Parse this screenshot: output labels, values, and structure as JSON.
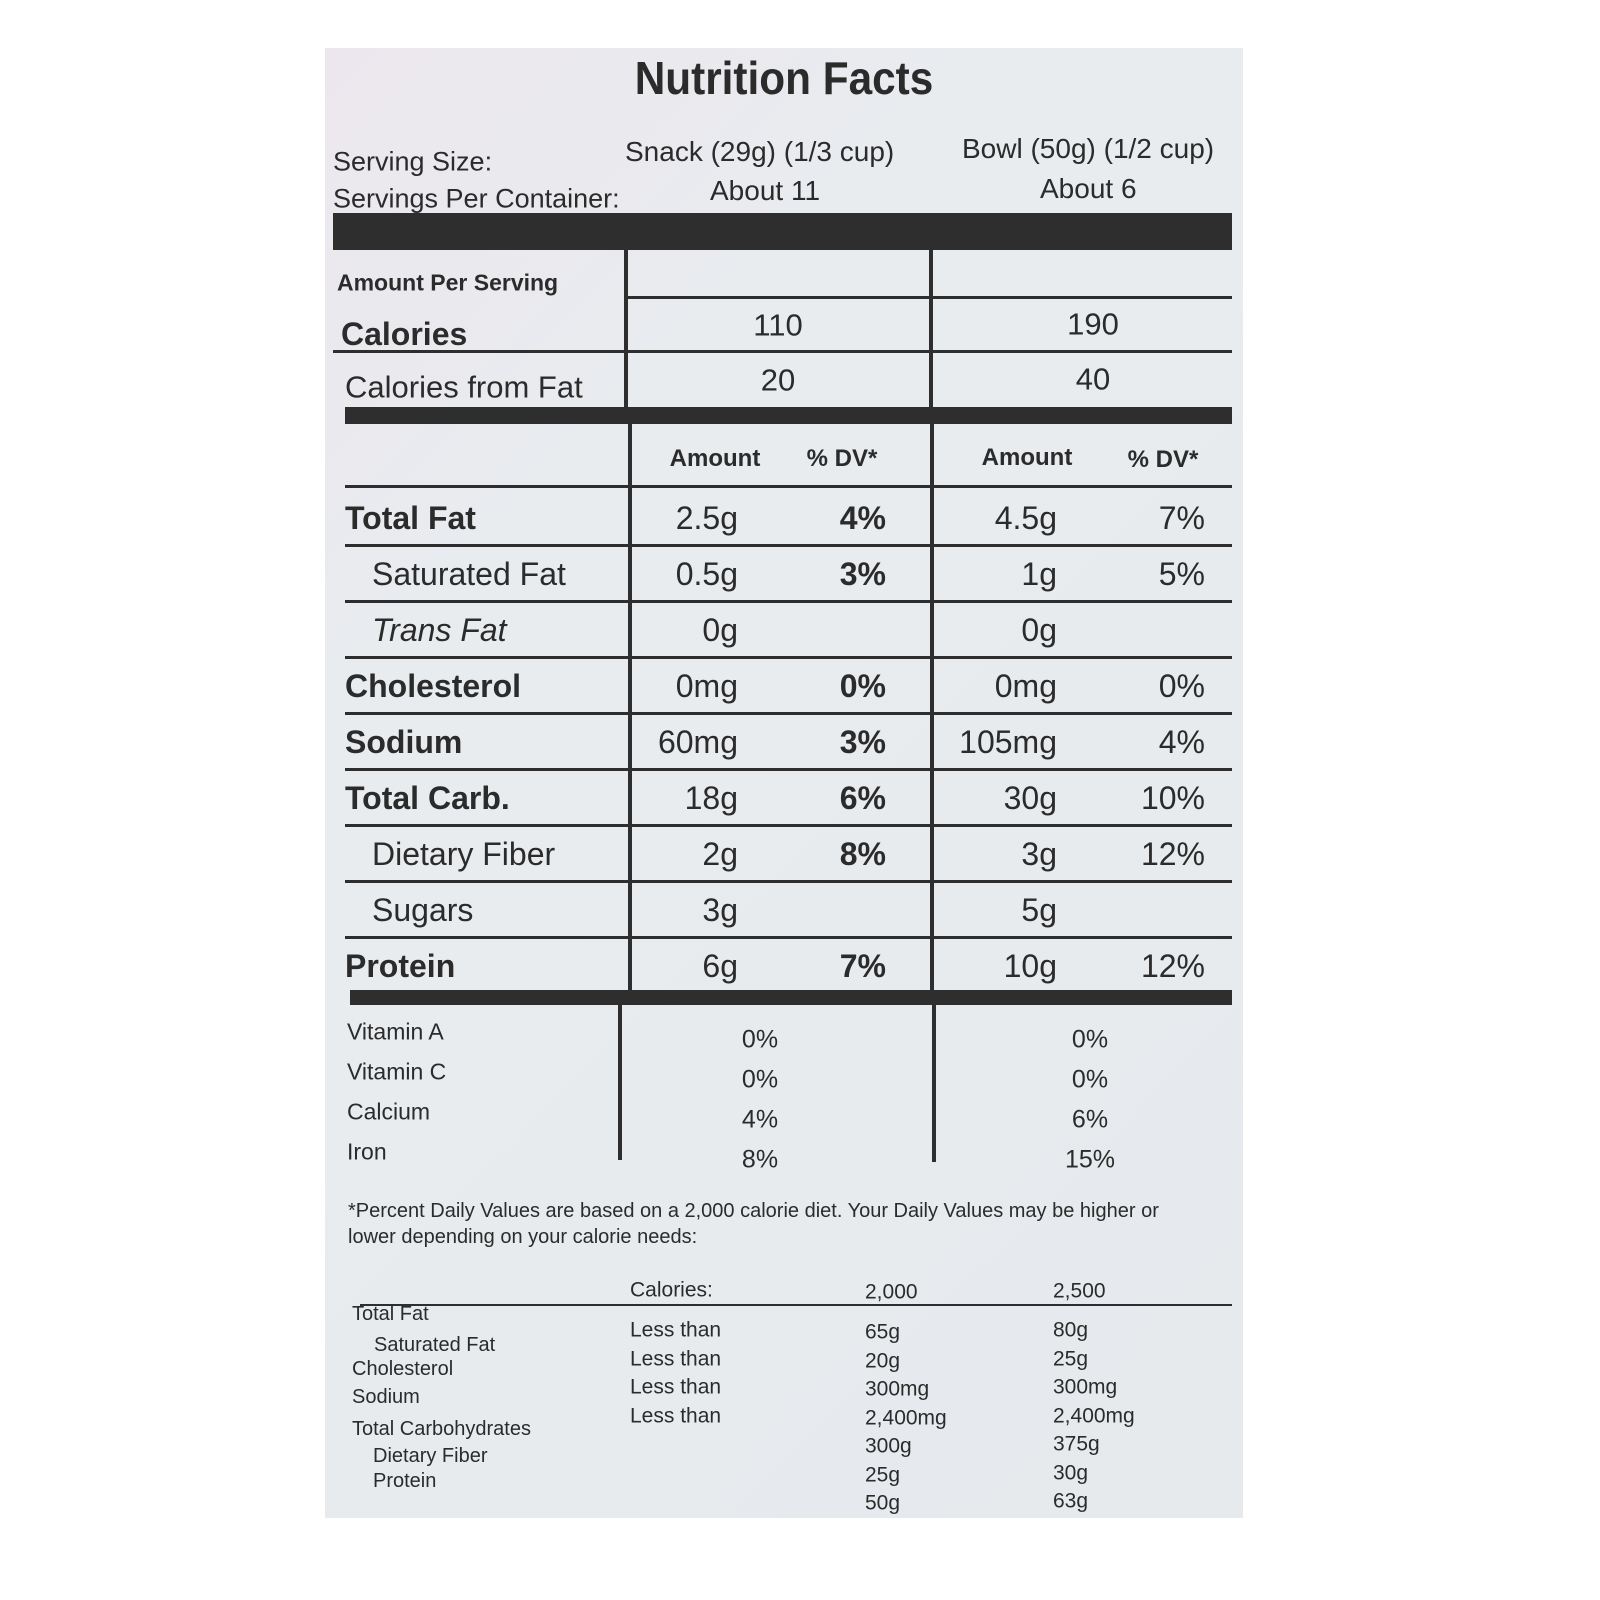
{
  "title": "Nutrition Facts",
  "serving_size": {
    "label": "Serving Size:",
    "snack": "Snack (29g) (1/3 cup)",
    "bowl": "Bowl (50g) (1/2 cup)"
  },
  "servings_per_container": {
    "label": "Servings Per Container:",
    "snack": "About 11",
    "bowl": "About 6"
  },
  "amount_per_serving": "Amount Per Serving",
  "calories": {
    "label": "Calories",
    "snack": "110",
    "bowl": "190"
  },
  "calories_from_fat": {
    "label": "Calories from Fat",
    "snack": "20",
    "bowl": "40"
  },
  "columns": {
    "amount": "Amount",
    "dv": "% DV*"
  },
  "nutrients": [
    {
      "name": "Total Fat",
      "snack_amount": "2.5g",
      "snack_dv": "4%",
      "bowl_amount": "4.5g",
      "bowl_dv": "7%"
    },
    {
      "name": "Saturated Fat",
      "snack_amount": "0.5g",
      "snack_dv": "3%",
      "bowl_amount": "1g",
      "bowl_dv": "5%"
    },
    {
      "name": "Trans Fat",
      "snack_amount": "0g",
      "bowl_amount": "0g"
    },
    {
      "name": "Cholesterol",
      "snack_amount": "0mg",
      "snack_dv": "0%",
      "bowl_amount": "0mg",
      "bowl_dv": "0%"
    },
    {
      "name": "Sodium",
      "snack_amount": "60mg",
      "snack_dv": "3%",
      "bowl_amount": "105mg",
      "bowl_dv": "4%"
    },
    {
      "name": "Total Carb.",
      "snack_amount": "18g",
      "snack_dv": "6%",
      "bowl_amount": "30g",
      "bowl_dv": "10%"
    },
    {
      "name": "Dietary Fiber",
      "snack_amount": "2g",
      "snack_dv": "8%",
      "bowl_amount": "3g",
      "bowl_dv": "12%"
    },
    {
      "name": "Sugars",
      "snack_amount": "3g",
      "bowl_amount": "5g"
    },
    {
      "name": "Protein",
      "snack_amount": "6g",
      "snack_dv": "7%",
      "bowl_amount": "10g",
      "bowl_dv": "12%"
    }
  ],
  "vitamins": [
    {
      "name": "Vitamin A",
      "snack": "0%",
      "bowl": "0%"
    },
    {
      "name": "Vitamin C",
      "snack": "0%",
      "bowl": "0%"
    },
    {
      "name": "Calcium",
      "snack": "4%",
      "bowl": "6%"
    },
    {
      "name": "Iron",
      "snack": "8%",
      "bowl": "15%"
    }
  ],
  "footnote": "*Percent Daily Values are based on a 2,000 calorie diet. Your Daily Values may be higher or lower depending on your calorie needs:",
  "daily_values": {
    "header": {
      "calories": "Calories:",
      "c2000": "2,000",
      "c2500": "2,500"
    },
    "rows": [
      {
        "name": "Total Fat",
        "qualifier": "Less than",
        "c2000": "65g",
        "c2500": "80g"
      },
      {
        "name": "Saturated Fat",
        "qualifier": "Less than",
        "c2000": "20g",
        "c2500": "25g"
      },
      {
        "name": "Cholesterol",
        "qualifier": "Less than",
        "c2000": "300mg",
        "c2500": "300mg"
      },
      {
        "name": "Sodium",
        "qualifier": "Less than",
        "c2000": "2,400mg",
        "c2500": "2,400mg"
      },
      {
        "name": "Total Carbohydrates",
        "c2000": "300g",
        "c2500": "375g"
      },
      {
        "name": "Dietary Fiber",
        "c2000": "25g",
        "c2500": "30g"
      },
      {
        "name": "Protein",
        "c2000": "50g",
        "c2500": "63g"
      }
    ]
  }
}
